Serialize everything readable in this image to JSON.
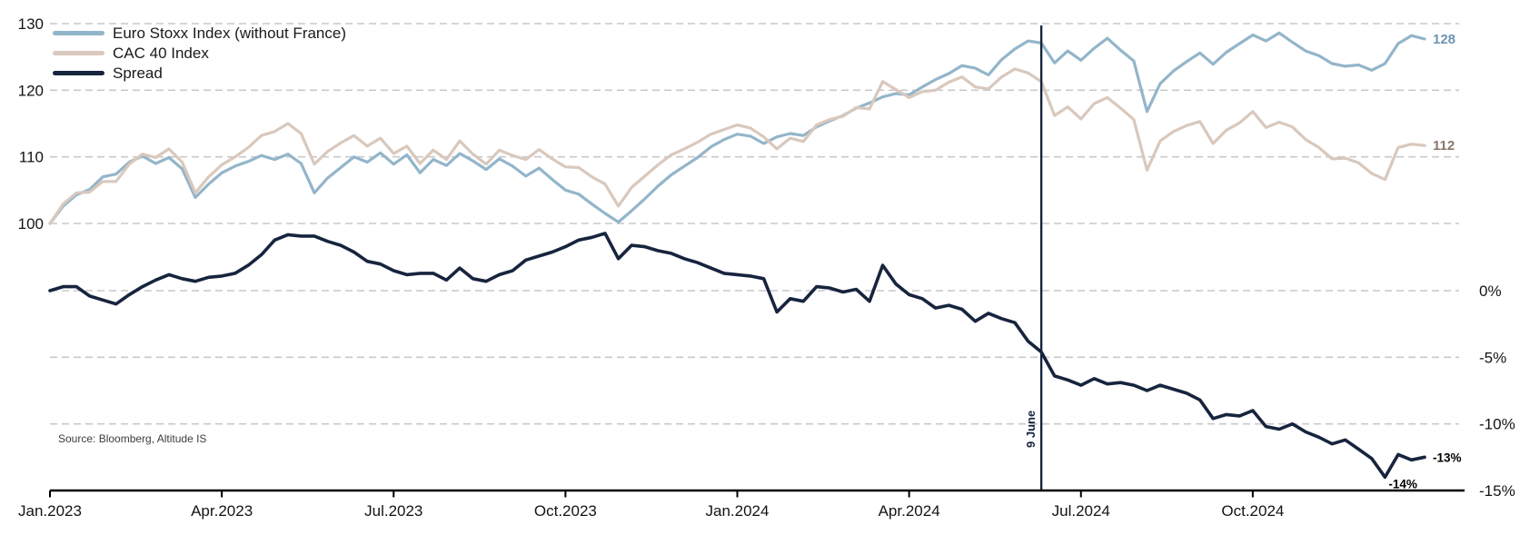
{
  "source": "Source: Bloomberg, Altitude IS",
  "chart_data": {
    "type": "line",
    "x_range": {
      "start": "Jan 2023",
      "end": "Dec 2024",
      "points": 105,
      "interval": "weekly"
    },
    "x_ticks": [
      {
        "label": "Jan.2023",
        "month": 0
      },
      {
        "label": "Apr.2023",
        "month": 3
      },
      {
        "label": "Jul.2023",
        "month": 6
      },
      {
        "label": "Oct.2023",
        "month": 9
      },
      {
        "label": "Jan.2024",
        "month": 12
      },
      {
        "label": "Apr.2024",
        "month": 15
      },
      {
        "label": "Jul.2024",
        "month": 18
      },
      {
        "label": "Oct.2024",
        "month": 21
      }
    ],
    "left_axis": {
      "note": "index level, rebased to 100 at Jan 2023",
      "ticks": [
        {
          "label": "130",
          "value": 130
        },
        {
          "label": "120",
          "value": 120
        },
        {
          "label": "110",
          "value": 110
        },
        {
          "label": "100",
          "value": 100
        }
      ]
    },
    "right_axis": {
      "note": "spread (CAC 40 vs Euro Stoxx), percent",
      "ticks": [
        {
          "label": "0%",
          "value": 0
        },
        {
          "label": "-5%",
          "value": -5
        },
        {
          "label": "-10%",
          "value": -10
        },
        {
          "label": "-15%",
          "value": -15
        }
      ]
    },
    "grid_color": "#C9C9C9",
    "axis_color": "#000000",
    "series": [
      {
        "id": "euro_stoxx",
        "label": "Euro Stoxx Index (without France)",
        "color": "#93B5CA",
        "axis": "left",
        "values": [
          100.0,
          102.6,
          104.3,
          105.1,
          107.0,
          107.4,
          109.2,
          110.1,
          109.0,
          109.9,
          108.2,
          103.9,
          105.9,
          107.6,
          108.6,
          109.3,
          110.2,
          109.6,
          110.4,
          109.0,
          104.6,
          106.8,
          108.4,
          110.0,
          109.2,
          110.6,
          108.9,
          110.3,
          107.6,
          109.6,
          108.7,
          110.5,
          109.4,
          108.1,
          109.7,
          108.6,
          107.1,
          108.3,
          106.6,
          105.0,
          104.4,
          102.9,
          101.5,
          100.2,
          101.9,
          103.7,
          105.6,
          107.3,
          108.6,
          109.9,
          111.5,
          112.6,
          113.4,
          113.1,
          112.0,
          113.0,
          113.5,
          113.2,
          114.5,
          115.4,
          116.2,
          117.3,
          118.1,
          119.0,
          119.5,
          119.3,
          120.5,
          121.6,
          122.5,
          123.7,
          123.3,
          122.3,
          124.6,
          126.2,
          127.4,
          127.1,
          124.1,
          125.9,
          124.5,
          126.3,
          127.8,
          126.0,
          124.4,
          116.8,
          121.0,
          122.9,
          124.3,
          125.6,
          123.9,
          125.7,
          127.0,
          128.3,
          127.4,
          128.6,
          127.2,
          125.9,
          125.2,
          124.0,
          123.6,
          123.8,
          123.0,
          124.0,
          127.0,
          128.2,
          127.7
        ]
      },
      {
        "id": "cac40",
        "label": "CAC 40 Index",
        "color": "#D9C8BD",
        "axis": "left",
        "values": [
          100.0,
          102.9,
          104.6,
          104.7,
          106.3,
          106.3,
          108.9,
          110.4,
          109.9,
          111.2,
          109.2,
          104.6,
          107.0,
          108.8,
          110.0,
          111.4,
          113.2,
          113.8,
          115.0,
          113.5,
          108.9,
          110.8,
          112.1,
          113.2,
          111.6,
          112.8,
          110.5,
          111.6,
          109.0,
          111.0,
          109.6,
          112.4,
          110.4,
          108.9,
          111.0,
          110.2,
          109.6,
          111.1,
          109.7,
          108.5,
          108.4,
          107.0,
          105.9,
          102.6,
          105.4,
          107.1,
          108.8,
          110.3,
          111.2,
          112.2,
          113.4,
          114.1,
          114.8,
          114.3,
          113.0,
          111.2,
          112.8,
          112.3,
          114.8,
          115.6,
          116.1,
          117.4,
          117.2,
          121.3,
          120.1,
          118.9,
          119.8,
          120.0,
          121.2,
          122.0,
          120.5,
          120.2,
          122.0,
          123.2,
          122.6,
          121.3,
          116.2,
          117.5,
          115.7,
          118.0,
          118.9,
          117.3,
          115.6,
          108.0,
          112.4,
          113.8,
          114.7,
          115.3,
          112.0,
          114.0,
          115.1,
          116.8,
          114.4,
          115.2,
          114.5,
          112.6,
          111.4,
          109.7,
          109.8,
          109.1,
          107.5,
          106.6,
          111.4,
          111.9,
          111.7
        ]
      },
      {
        "id": "spread",
        "label": "Spread",
        "color": "#17243E",
        "axis": "right",
        "values": [
          0.0,
          0.3,
          0.3,
          -0.4,
          -0.7,
          -1.0,
          -0.3,
          0.3,
          0.8,
          1.2,
          0.9,
          0.7,
          1.0,
          1.1,
          1.3,
          1.9,
          2.7,
          3.8,
          4.2,
          4.1,
          4.1,
          3.7,
          3.4,
          2.9,
          2.2,
          2.0,
          1.5,
          1.2,
          1.3,
          1.3,
          0.8,
          1.7,
          0.9,
          0.7,
          1.2,
          1.5,
          2.3,
          2.6,
          2.9,
          3.3,
          3.8,
          4.0,
          4.3,
          2.4,
          3.4,
          3.3,
          3.0,
          2.8,
          2.4,
          2.1,
          1.7,
          1.3,
          1.2,
          1.1,
          0.9,
          -1.6,
          -0.6,
          -0.8,
          0.3,
          0.2,
          -0.1,
          0.1,
          -0.8,
          1.9,
          0.5,
          -0.3,
          -0.6,
          -1.3,
          -1.1,
          -1.4,
          -2.3,
          -1.7,
          -2.1,
          -2.4,
          -3.8,
          -4.6,
          -6.4,
          -6.7,
          -7.1,
          -6.6,
          -7.0,
          -6.9,
          -7.1,
          -7.5,
          -7.1,
          -7.4,
          -7.7,
          -8.2,
          -9.6,
          -9.3,
          -9.4,
          -9.0,
          -10.2,
          -10.4,
          -10.0,
          -10.6,
          -11.0,
          -11.5,
          -11.2,
          -11.9,
          -12.6,
          -14.0,
          -12.3,
          -12.7,
          -12.5
        ]
      }
    ],
    "event_line": {
      "label": "9 June",
      "index": 75,
      "color": "#17243E"
    },
    "end_labels": [
      {
        "series": "euro_stoxx",
        "text": "128",
        "color": "#6E93B0"
      },
      {
        "series": "cac40",
        "text": "112",
        "color": "#8A7668"
      },
      {
        "series": "spread",
        "text": "-13%",
        "color": "#000000"
      }
    ],
    "min_label": {
      "series": "spread",
      "text": "-14%",
      "index": 101,
      "color": "#000000"
    }
  }
}
